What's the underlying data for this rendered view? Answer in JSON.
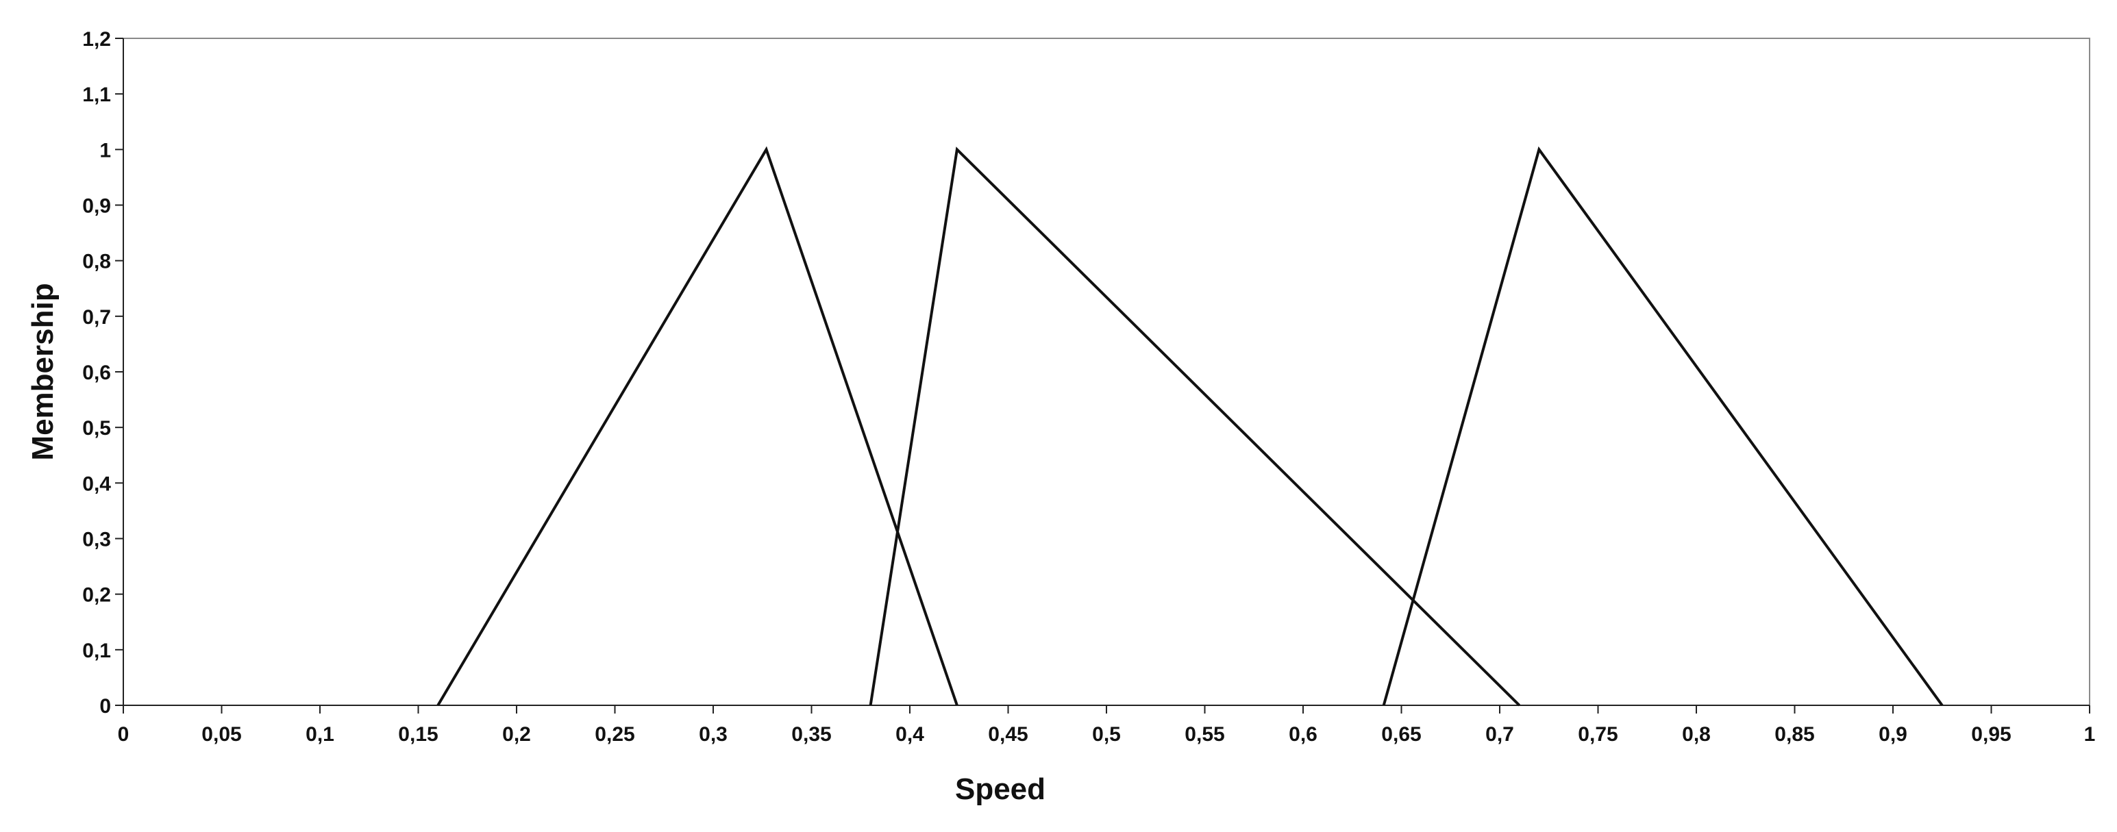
{
  "chart_data": {
    "type": "line",
    "title": "",
    "xlabel": "Speed",
    "ylabel": "Membership",
    "xlim": [
      0,
      1
    ],
    "ylim": [
      0,
      1.2
    ],
    "grid": false,
    "legend": "none",
    "line_color": "#111111",
    "x_ticks": [
      {
        "value": 0,
        "label": "0"
      },
      {
        "value": 0.05,
        "label": "0,05"
      },
      {
        "value": 0.1,
        "label": "0,1"
      },
      {
        "value": 0.15,
        "label": "0,15"
      },
      {
        "value": 0.2,
        "label": "0,2"
      },
      {
        "value": 0.25,
        "label": "0,25"
      },
      {
        "value": 0.3,
        "label": "0,3"
      },
      {
        "value": 0.35,
        "label": "0,35"
      },
      {
        "value": 0.4,
        "label": "0,4"
      },
      {
        "value": 0.45,
        "label": "0,45"
      },
      {
        "value": 0.5,
        "label": "0,5"
      },
      {
        "value": 0.55,
        "label": "0,55"
      },
      {
        "value": 0.6,
        "label": "0,6"
      },
      {
        "value": 0.65,
        "label": "0,65"
      },
      {
        "value": 0.7,
        "label": "0,7"
      },
      {
        "value": 0.75,
        "label": "0,75"
      },
      {
        "value": 0.8,
        "label": "0,8"
      },
      {
        "value": 0.85,
        "label": "0,85"
      },
      {
        "value": 0.9,
        "label": "0,9"
      },
      {
        "value": 0.95,
        "label": "0,95"
      },
      {
        "value": 1,
        "label": "1"
      }
    ],
    "y_ticks": [
      {
        "value": 0,
        "label": "0"
      },
      {
        "value": 0.1,
        "label": "0,1"
      },
      {
        "value": 0.2,
        "label": "0,2"
      },
      {
        "value": 0.3,
        "label": "0,3"
      },
      {
        "value": 0.4,
        "label": "0,4"
      },
      {
        "value": 0.5,
        "label": "0,5"
      },
      {
        "value": 0.6,
        "label": "0,6"
      },
      {
        "value": 0.7,
        "label": "0,7"
      },
      {
        "value": 0.8,
        "label": "0,8"
      },
      {
        "value": 0.9,
        "label": "0,9"
      },
      {
        "value": 1,
        "label": "1"
      },
      {
        "value": 1.1,
        "label": "1,1"
      },
      {
        "value": 1.2,
        "label": "1,2"
      }
    ],
    "series": [
      {
        "x": [
          0.16,
          0.327,
          0.424
        ],
        "y": [
          0,
          1,
          0
        ]
      },
      {
        "x": [
          0.38,
          0.424,
          0.71
        ],
        "y": [
          0,
          1,
          0
        ]
      },
      {
        "x": [
          0.641,
          0.72,
          0.925
        ],
        "y": [
          0,
          1,
          0
        ]
      }
    ]
  }
}
